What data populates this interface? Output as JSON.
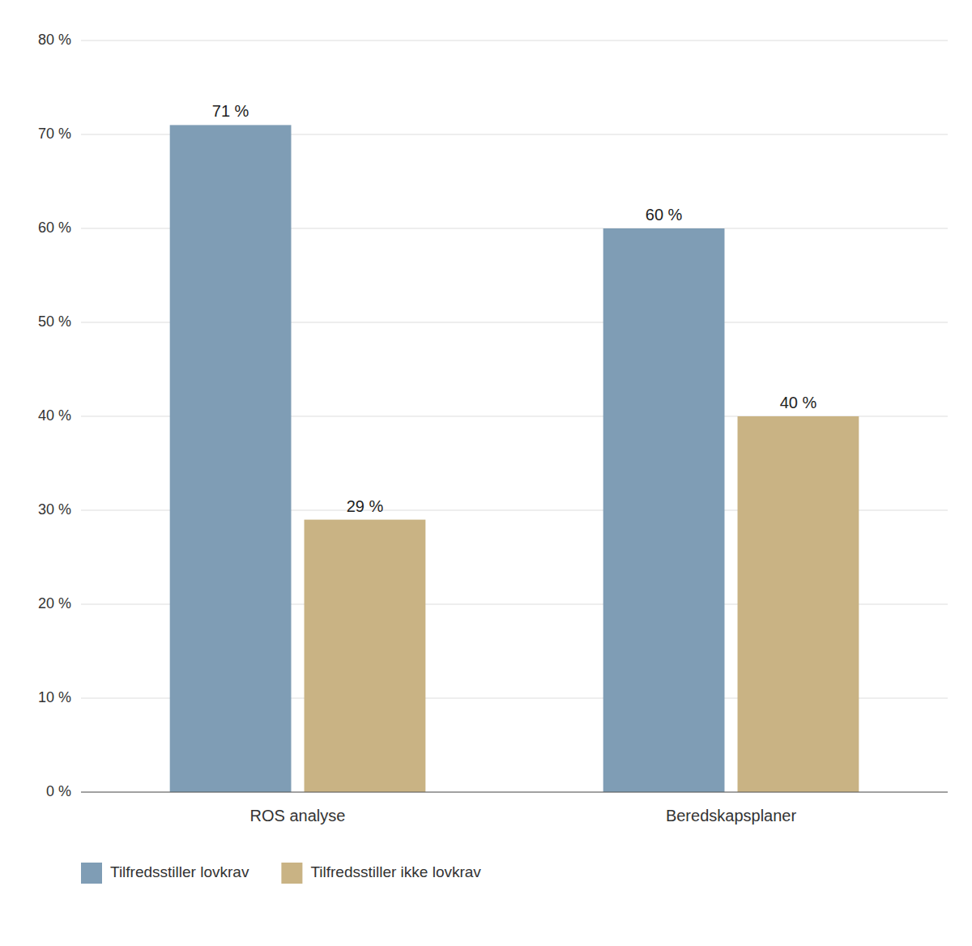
{
  "chart_data": {
    "type": "bar",
    "categories": [
      "ROS analyse",
      "Beredskapsplaner"
    ],
    "series": [
      {
        "name": "Tilfredsstiller lovkrav",
        "color": "#7f9db5",
        "values": [
          71,
          60
        ],
        "value_labels": [
          "71 %",
          "60 %"
        ]
      },
      {
        "name": "Tilfredsstiller ikke lovkrav",
        "color": "#c9b384",
        "values": [
          29,
          40
        ],
        "value_labels": [
          "29 %",
          "40 %"
        ]
      }
    ],
    "ylim": [
      0,
      80
    ],
    "yticks": [
      {
        "value": 0,
        "label": "0 %"
      },
      {
        "value": 10,
        "label": "10 %"
      },
      {
        "value": 20,
        "label": "20 %"
      },
      {
        "value": 30,
        "label": "30 %"
      },
      {
        "value": 40,
        "label": "40 %"
      },
      {
        "value": 50,
        "label": "50 %"
      },
      {
        "value": 60,
        "label": "60 %"
      },
      {
        "value": 70,
        "label": "70 %"
      },
      {
        "value": 80,
        "label": "80 %"
      }
    ],
    "grid": true,
    "legend": "lower left",
    "data_labels": true
  }
}
